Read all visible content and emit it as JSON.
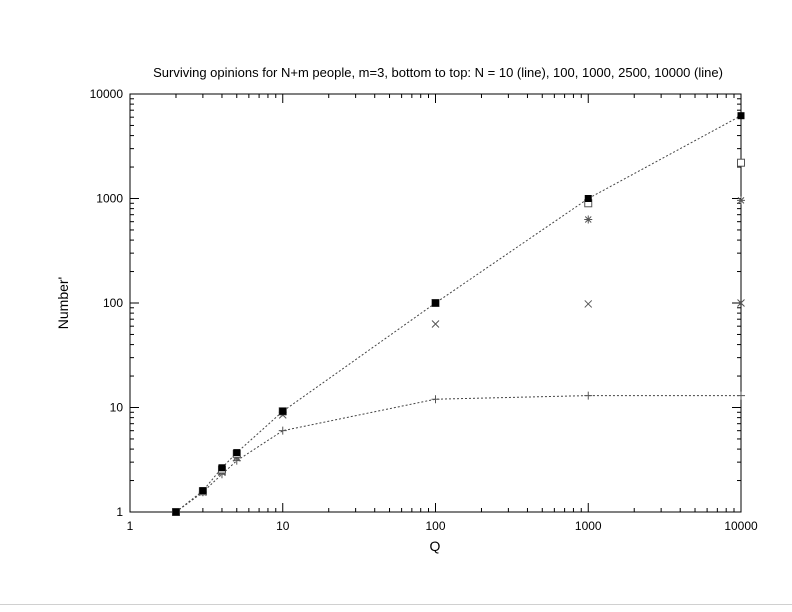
{
  "chart_data": {
    "type": "scatter",
    "title": "Surviving opinions for N+m people, m=3, bottom to top: N = 10 (line), 100, 1000, 2500, 10000 (line)",
    "xlabel": "Q",
    "ylabel": "Number'",
    "xscale": "log",
    "yscale": "log",
    "xlim": [
      1,
      10000
    ],
    "ylim": [
      1,
      10000
    ],
    "x_ticks": [
      "1",
      "10",
      "100",
      "1000",
      "10000"
    ],
    "y_ticks": [
      "1",
      "10",
      "100",
      "1000",
      "10000"
    ],
    "grid": false,
    "legend": "none",
    "x": [
      2,
      3,
      4,
      5,
      10,
      100,
      1000,
      10000
    ],
    "series": [
      {
        "marker": "plus",
        "line": true,
        "values": [
          1,
          1.55,
          2.3,
          3.1,
          6,
          12,
          13,
          13
        ]
      },
      {
        "marker": "x",
        "line": false,
        "values": [
          1,
          1.55,
          2.4,
          3.3,
          8.5,
          63,
          98,
          100
        ]
      },
      {
        "marker": "star",
        "line": false,
        "values": [
          1,
          1.55,
          2.45,
          3.4,
          9,
          100,
          630,
          960
        ]
      },
      {
        "marker": "open-square",
        "line": false,
        "values": [
          1,
          1.58,
          2.55,
          3.6,
          9.2,
          100,
          900,
          2200
        ]
      },
      {
        "marker": "filled-square",
        "line": true,
        "values": [
          1,
          1.6,
          2.65,
          3.7,
          9.2,
          100,
          1000,
          6200
        ]
      }
    ],
    "colors": {
      "marks": "#555555",
      "filled": "#000000",
      "frame": "#000000"
    }
  }
}
